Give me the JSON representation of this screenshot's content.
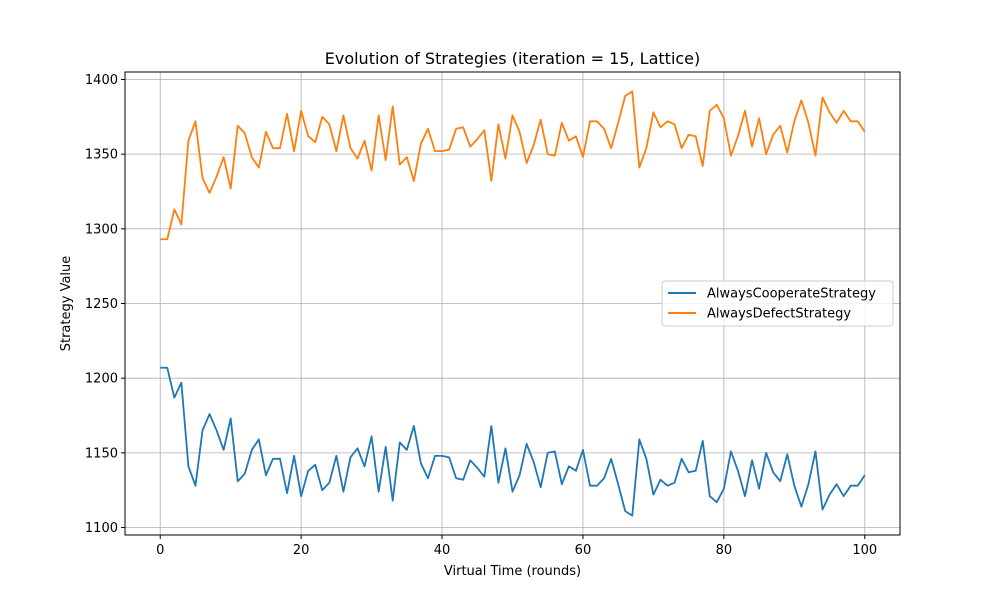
{
  "chart_data": {
    "type": "line",
    "title": "Evolution of Strategies (iteration = 15, Lattice)",
    "xlabel": "Virtual Time (rounds)",
    "ylabel": "Strategy Value",
    "xlim": [
      -5,
      105
    ],
    "ylim": [
      1095,
      1405
    ],
    "xticks": [
      0,
      20,
      40,
      60,
      80,
      100
    ],
    "yticks": [
      1100,
      1150,
      1200,
      1250,
      1300,
      1350,
      1400
    ],
    "grid": true,
    "legend_position": "center-right",
    "x_start": 0,
    "x_step": 1,
    "series": [
      {
        "name": "AlwaysCooperateStrategy",
        "color": "#1f77b4",
        "values": [
          1207,
          1207,
          1187,
          1197,
          1141,
          1128,
          1165,
          1176,
          1165,
          1152,
          1173,
          1131,
          1136,
          1152,
          1159,
          1135,
          1146,
          1146,
          1123,
          1148,
          1121,
          1138,
          1142,
          1125,
          1130,
          1148,
          1124,
          1147,
          1153,
          1141,
          1161,
          1124,
          1154,
          1118,
          1157,
          1152,
          1168,
          1143,
          1133,
          1148,
          1148,
          1147,
          1133,
          1132,
          1145,
          1140,
          1134,
          1168,
          1130,
          1153,
          1124,
          1135,
          1156,
          1144,
          1127,
          1150,
          1151,
          1129,
          1141,
          1138,
          1152,
          1128,
          1128,
          1133,
          1146,
          1129,
          1111,
          1108,
          1159,
          1146,
          1122,
          1132,
          1128,
          1130,
          1146,
          1137,
          1138,
          1158,
          1121,
          1117,
          1126,
          1151,
          1138,
          1121,
          1145,
          1126,
          1150,
          1137,
          1131,
          1149,
          1128,
          1114,
          1129,
          1151,
          1112,
          1122,
          1129,
          1121,
          1128,
          1128,
          1135
        ]
      },
      {
        "name": "AlwaysDefectStrategy",
        "color": "#ff7f0e",
        "values": [
          1293,
          1293,
          1313,
          1303,
          1359,
          1372,
          1334,
          1324,
          1335,
          1348,
          1327,
          1369,
          1364,
          1348,
          1341,
          1365,
          1354,
          1354,
          1377,
          1352,
          1379,
          1362,
          1358,
          1375,
          1370,
          1352,
          1376,
          1354,
          1347,
          1359,
          1339,
          1376,
          1346,
          1382,
          1343,
          1348,
          1332,
          1357,
          1367,
          1352,
          1352,
          1353,
          1367,
          1368,
          1355,
          1360,
          1366,
          1332,
          1370,
          1347,
          1376,
          1365,
          1344,
          1356,
          1373,
          1350,
          1349,
          1371,
          1359,
          1362,
          1348,
          1372,
          1372,
          1367,
          1354,
          1371,
          1389,
          1392,
          1341,
          1354,
          1378,
          1368,
          1372,
          1370,
          1354,
          1363,
          1362,
          1342,
          1379,
          1383,
          1374,
          1349,
          1362,
          1379,
          1355,
          1374,
          1350,
          1363,
          1369,
          1351,
          1372,
          1386,
          1371,
          1349,
          1388,
          1378,
          1371,
          1379,
          1372,
          1372,
          1365
        ]
      }
    ]
  }
}
